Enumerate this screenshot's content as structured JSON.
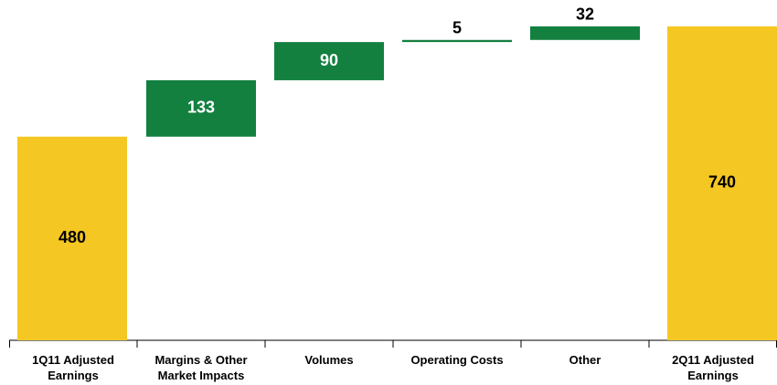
{
  "chart_data": {
    "type": "waterfall",
    "categories": [
      "1Q11 Adjusted Earnings",
      "Margins & Other Market Impacts",
      "Volumes",
      "Operating Costs",
      "Other",
      "2Q11 Adjusted Earnings"
    ],
    "values": [
      480,
      133,
      90,
      5,
      32,
      740
    ],
    "measures": [
      "total",
      "relative",
      "relative",
      "relative",
      "relative",
      "total"
    ],
    "colors": [
      "#f5c722",
      "#138040",
      "#138040",
      "#138040",
      "#138040",
      "#f5c722"
    ],
    "ylim": [
      0,
      800
    ]
  }
}
